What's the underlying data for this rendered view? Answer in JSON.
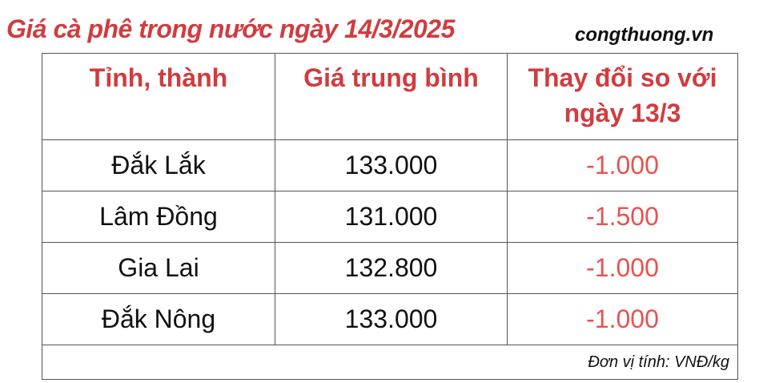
{
  "title": "Giá cà phê trong nước ngày 14/3/2025",
  "brand": "congthuong.vn",
  "table": {
    "headers": [
      "Tỉnh, thành",
      "Giá trung bình",
      "Thay đổi so với ngày 13/3"
    ],
    "rows": [
      {
        "province": "Đắk Lắk",
        "price": "133.000",
        "change": "-1.000"
      },
      {
        "province": "Lâm Đồng",
        "price": "131.000",
        "change": "-1.500"
      },
      {
        "province": "Gia Lai",
        "price": "132.800",
        "change": "-1.000"
      },
      {
        "province": "Đắk Nông",
        "price": "133.000",
        "change": "-1.000"
      }
    ],
    "unit_note": "Đơn vị tính: VNĐ/kg"
  },
  "colors": {
    "title": "#d13c3f",
    "change": "#e8524f"
  }
}
